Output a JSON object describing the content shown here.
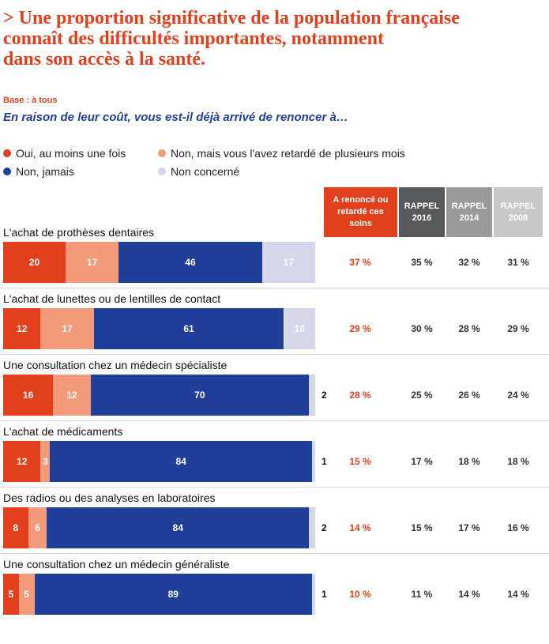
{
  "title": [
    "> Une proportion significative de la population française",
    "connaît des difficultés importantes, notamment",
    "dans son accès à la santé."
  ],
  "base": "Base : à tous",
  "question": "En raison de leur coût, vous est-il déjà arrivé de renoncer à…",
  "colors": {
    "oui": "#e2401c",
    "retarde": "#f29a7a",
    "jamais": "#1f3f99",
    "non_concerne": "#d6d7ea",
    "title": "#e2401c",
    "question": "#1f3f99",
    "rappel_2016": "#58595b",
    "rappel_2014": "#9a9a9a",
    "rappel_2008": "#c8c8c8"
  },
  "chart_data": {
    "type": "bar",
    "orientation": "horizontal-stacked",
    "title": "En raison de leur coût, vous est-il déjà arrivé de renoncer à…",
    "xlim": [
      0,
      100
    ],
    "legend": [
      {
        "key": "oui",
        "label": "Oui, au moins une fois"
      },
      {
        "key": "retarde",
        "label": "Non, mais vous l'avez retardé de plusieurs mois"
      },
      {
        "key": "jamais",
        "label": "Non, jamais"
      },
      {
        "key": "non_concerne",
        "label": "Non concerné"
      }
    ],
    "columns": [
      {
        "key": "renonce",
        "label": "A renoncé ou retardé ces soins"
      },
      {
        "key": "r2016",
        "label": "RAPPEL 2016"
      },
      {
        "key": "r2014",
        "label": "RAPPEL 2014"
      },
      {
        "key": "r2008",
        "label": "RAPPEL 2008"
      }
    ],
    "categories": [
      "L'achat de prothèses dentaires",
      "L'achat de lunettes ou de lentilles de contact",
      "Une consultation chez un médecin spécialiste",
      "L'achat de médicaments",
      "Des radios ou des analyses en laboratoires",
      "Une consultation chez un médecin généraliste"
    ],
    "series": [
      {
        "key": "oui",
        "name": "Oui, au moins une fois",
        "values": [
          20,
          12,
          16,
          12,
          8,
          5
        ]
      },
      {
        "key": "retarde",
        "name": "Non, mais vous l'avez retardé de plusieurs mois",
        "values": [
          17,
          17,
          12,
          3,
          6,
          5
        ]
      },
      {
        "key": "jamais",
        "name": "Non, jamais",
        "values": [
          46,
          61,
          70,
          84,
          84,
          89
        ]
      },
      {
        "key": "non_concerne",
        "name": "Non concerné",
        "values": [
          17,
          10,
          2,
          1,
          2,
          1
        ]
      }
    ],
    "table": {
      "renonce": [
        "37 %",
        "29 %",
        "28 %",
        "15 %",
        "14 %",
        "10 %"
      ],
      "r2016": [
        "35 %",
        "30 %",
        "25 %",
        "17 %",
        "15 %",
        "11 %"
      ],
      "r2014": [
        "32 %",
        "28 %",
        "26 %",
        "18 %",
        "17 %",
        "14 %"
      ],
      "r2008": [
        "31 %",
        "29 %",
        "24 %",
        "18 %",
        "16 %",
        "14 %"
      ]
    }
  }
}
